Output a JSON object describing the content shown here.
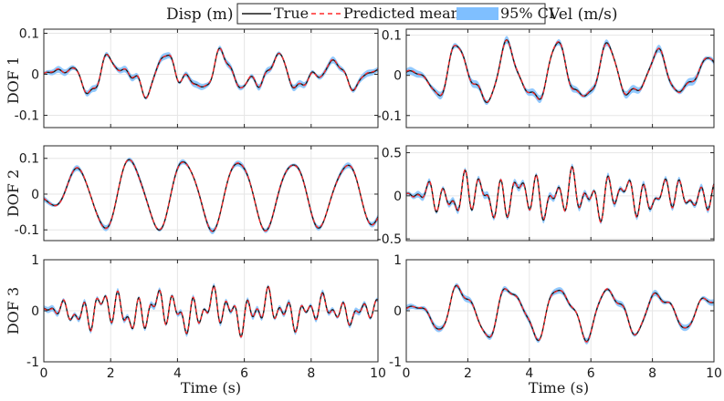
{
  "header": {
    "left_title": "Disp (m)",
    "right_title": "Vel (m/s)"
  },
  "legend": {
    "items": [
      {
        "label": "True",
        "style": "line",
        "color": "#1a1a1a"
      },
      {
        "label": "Predicted mean",
        "style": "dashed",
        "color": "#ff2a2a"
      },
      {
        "label": "95% CI",
        "style": "band",
        "color": "#7fbfff"
      }
    ]
  },
  "row_labels": [
    "DOF 1",
    "DOF 2",
    "DOF 3"
  ],
  "x_axis": {
    "label": "Time (s)",
    "ticks": [
      0,
      2,
      4,
      6,
      8,
      10
    ],
    "range": [
      0,
      10
    ]
  },
  "chart_data": [
    {
      "type": "line",
      "row": 1,
      "column": "Disp (m)",
      "ylabel": "DOF 1",
      "xlim": [
        0,
        10
      ],
      "ylim": [
        -0.13,
        0.11
      ],
      "yticks": [
        -0.1,
        0,
        0.1
      ],
      "series": [
        "True",
        "Predicted mean",
        "95% CI"
      ],
      "signal": {
        "freqs": [
          0.62,
          1.15,
          2.1,
          2.9
        ],
        "amps": [
          0.035,
          0.02,
          0.009,
          0.004
        ],
        "phases": [
          -0.4,
          0.9,
          1.8,
          0.3
        ],
        "envelope": [
          0.15,
          1.0,
          0.55
        ],
        "offset": 0,
        "ci": 0.006
      }
    },
    {
      "type": "line",
      "row": 1,
      "column": "Vel (m/s)",
      "ylabel": "DOF 1",
      "xlim": [
        0,
        10
      ],
      "ylim": [
        -0.13,
        0.115
      ],
      "yticks": [
        -0.1,
        0,
        0.1
      ],
      "series": [
        "True",
        "Predicted mean",
        "95% CI"
      ],
      "signal": {
        "freqs": [
          0.62,
          1.2,
          2.2
        ],
        "amps": [
          0.065,
          0.02,
          0.006
        ],
        "phases": [
          1.2,
          2.4,
          0.6
        ],
        "envelope": [
          0.1,
          1.0,
          0.55
        ],
        "offset": 0,
        "ci": 0.007
      }
    },
    {
      "type": "line",
      "row": 2,
      "column": "Disp (m)",
      "ylabel": "DOF 2",
      "xlim": [
        0,
        10
      ],
      "ylim": [
        -0.13,
        0.135
      ],
      "yticks": [
        -0.1,
        0,
        0.1
      ],
      "series": [
        "True",
        "Predicted mean",
        "95% CI"
      ],
      "signal": {
        "freqs": [
          0.62,
          1.3
        ],
        "amps": [
          0.095,
          0.01
        ],
        "phases": [
          -2.3,
          0.8
        ],
        "envelope": [
          0.2,
          1.0,
          0.85
        ],
        "offset": 0,
        "ci": 0.006
      }
    },
    {
      "type": "line",
      "row": 2,
      "column": "Vel (m/s)",
      "ylabel": "DOF 2",
      "xlim": [
        0,
        10
      ],
      "ylim": [
        -0.52,
        0.58
      ],
      "yticks": [
        -0.5,
        0,
        0.5
      ],
      "series": [
        "True",
        "Predicted mean",
        "95% CI"
      ],
      "signal": {
        "freqs": [
          0.62,
          1.7,
          2.6
        ],
        "amps": [
          0.08,
          0.14,
          0.12
        ],
        "phases": [
          -0.5,
          0.4,
          1.6
        ],
        "envelope": [
          0.15,
          1.0,
          0.6
        ],
        "offset": 0,
        "ci": 0.03
      }
    },
    {
      "type": "line",
      "row": 3,
      "column": "Disp (m)",
      "ylabel": "DOF 3",
      "xlim": [
        0,
        10
      ],
      "ylim": [
        -1.0,
        1.0
      ],
      "yticks": [
        -1,
        0,
        1
      ],
      "series": [
        "True",
        "Predicted mean",
        "95% CI"
      ],
      "signal": {
        "freqs": [
          0.62,
          1.8,
          3.1
        ],
        "amps": [
          0.14,
          0.2,
          0.18
        ],
        "phases": [
          0.5,
          1.1,
          2.7
        ],
        "envelope": [
          0.15,
          1.0,
          0.5
        ],
        "offset": 0,
        "ci": 0.045
      }
    },
    {
      "type": "line",
      "row": 3,
      "column": "Vel (m/s)",
      "ylabel": "DOF 3",
      "xlim": [
        0,
        10
      ],
      "ylim": [
        -1.0,
        1.0
      ],
      "yticks": [
        -1,
        0,
        1
      ],
      "series": [
        "True",
        "Predicted mean",
        "95% CI"
      ],
      "signal": {
        "freqs": [
          0.62,
          1.25,
          2.0
        ],
        "amps": [
          0.45,
          0.12,
          0.05
        ],
        "phases": [
          0.9,
          2.2,
          0.4
        ],
        "envelope": [
          0.1,
          1.0,
          0.55
        ],
        "offset": 0,
        "ci": 0.045
      }
    }
  ]
}
